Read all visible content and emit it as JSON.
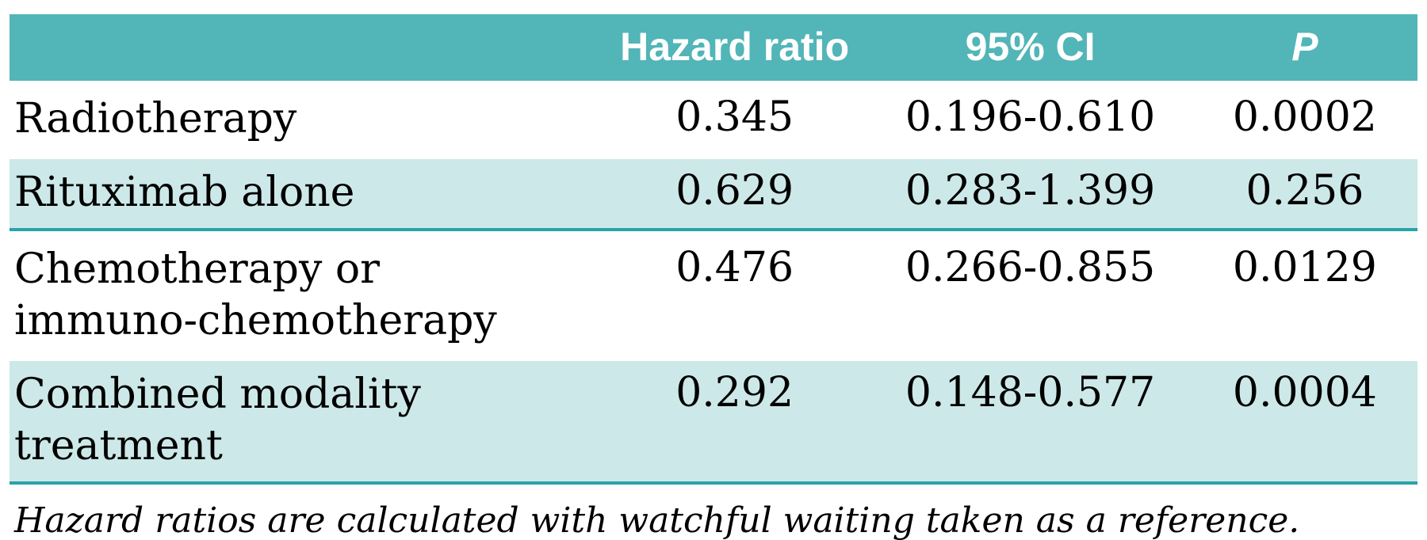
{
  "table": {
    "headers": {
      "treatment": "",
      "hazard_ratio": "Hazard ratio",
      "ci": "95% CI",
      "p": "P"
    },
    "rows": [
      {
        "label": "Radiotherapy",
        "hazard_ratio": "0.345",
        "ci": "0.196-0.610",
        "p": "0.0002"
      },
      {
        "label": "Rituximab alone",
        "hazard_ratio": "0.629",
        "ci": "0.283-1.399",
        "p": "0.256"
      },
      {
        "label": "Chemotherapy or\nimmuno-chemotherapy",
        "hazard_ratio": "0.476",
        "ci": "0.266-0.855",
        "p": "0.0129"
      },
      {
        "label": "Combined modality treatment",
        "hazard_ratio": "0.292",
        "ci": "0.148-0.577",
        "p": "0.0004"
      }
    ],
    "footnote": "Hazard ratios are calculated with watchful waiting taken as a reference."
  },
  "colors": {
    "header_bg": "#52b5b8",
    "header_text": "#ffffff",
    "alt_row_bg": "#cde8e8",
    "alt_row_border": "#2aa2a7",
    "body_text": "#000000"
  }
}
